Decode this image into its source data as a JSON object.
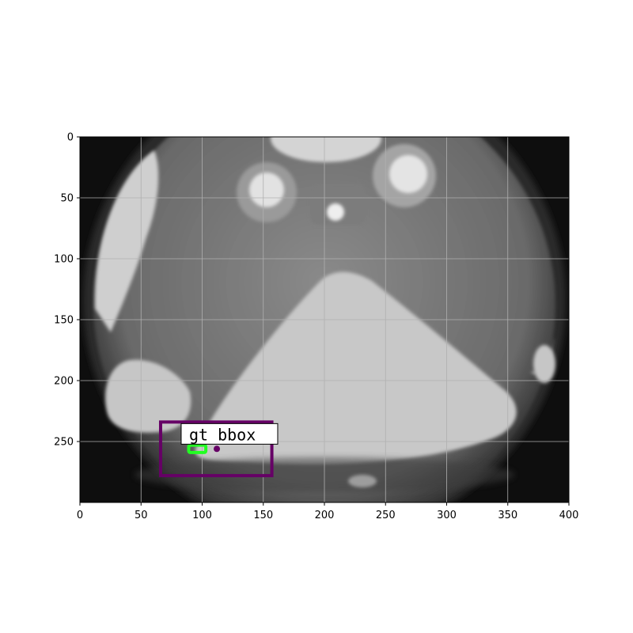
{
  "chart_data": {
    "type": "image",
    "title": "",
    "xlabel": "",
    "ylabel": "",
    "xlim": [
      0,
      400
    ],
    "ylim": [
      300,
      0
    ],
    "grid": true,
    "x_ticks": [
      "0",
      "50",
      "100",
      "150",
      "200",
      "250",
      "300",
      "350",
      "400"
    ],
    "y_ticks": [
      "0",
      "50",
      "100",
      "150",
      "200",
      "250"
    ],
    "annotations": [
      {
        "label": "gt_bbox",
        "color": "#660066",
        "box": {
          "x0": 66,
          "y0": 234,
          "x1": 157,
          "y1": 278
        }
      },
      {
        "label": "",
        "color": "#22ff22",
        "box": {
          "x0": 89,
          "y0": 253,
          "x1": 103,
          "y1": 259
        }
      }
    ],
    "point": {
      "x": 112,
      "y": 256,
      "color": "#660066"
    },
    "label_text": "gt bbox"
  }
}
